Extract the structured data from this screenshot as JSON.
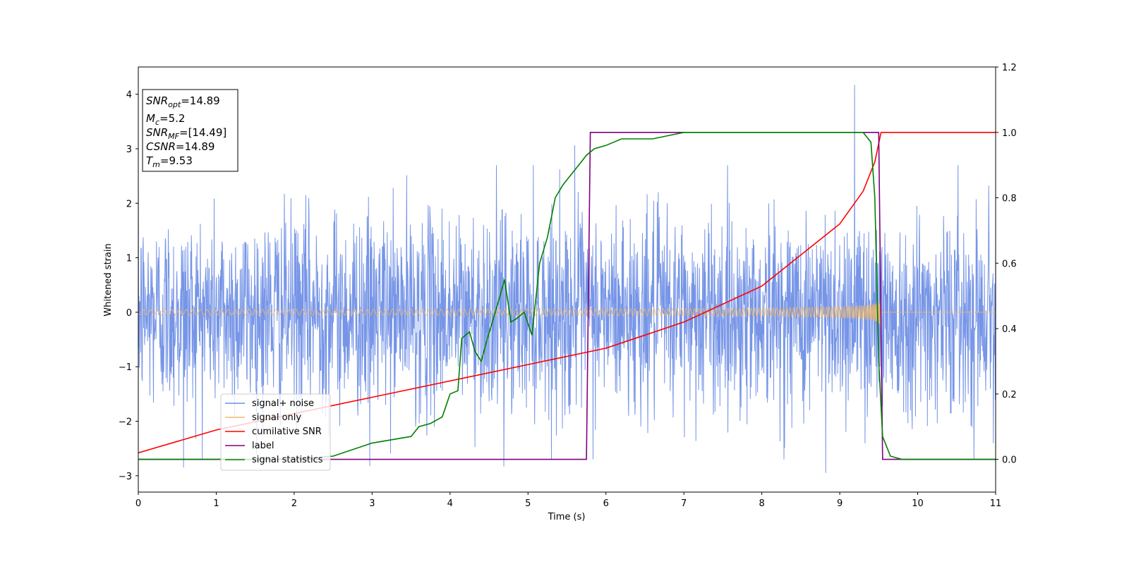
{
  "chart_data": {
    "type": "line",
    "xlabel": "Time (s)",
    "ylabel": "Whitened strain",
    "xlim": [
      0,
      11
    ],
    "ylim": [
      -3.3,
      4.5
    ],
    "y2lim": [
      -0.1,
      1.2
    ],
    "x_ticks": [
      "0",
      "1",
      "2",
      "3",
      "4",
      "5",
      "6",
      "7",
      "8",
      "9",
      "10",
      "11"
    ],
    "y_ticks": [
      "−3",
      "−2",
      "−1",
      "0",
      "1",
      "2",
      "3",
      "4"
    ],
    "y2_ticks": [
      "0.0",
      "0.2",
      "0.4",
      "0.6",
      "0.8",
      "1.0",
      "1.2"
    ],
    "grid": false,
    "legend_position": "lower-left",
    "info_box": {
      "snr_opt_sym": "SNR",
      "snr_opt_sub": "opt",
      "snr_opt_val": "=14.89",
      "mc_sym": "M",
      "mc_sub": "c",
      "mc_val": "=5.2",
      "snr_mf_sym": "SNR",
      "snr_mf_sub": "MF",
      "snr_mf_val": "=[14.49]",
      "csnr_sym": "CSNR",
      "csnr_val": "=14.89",
      "tm_sym": "T",
      "tm_sub": "m",
      "tm_val": "=9.53"
    },
    "series": [
      {
        "name": "signal+ noise",
        "color": "#6f8fe6",
        "axis": "left",
        "noise_std": 0.9,
        "peaks": [
          [
            9.19,
            4.17
          ],
          [
            8.82,
            -2.95
          ],
          [
            0.58,
            -2.85
          ],
          [
            4.69,
            -2.83
          ],
          [
            2.97,
            -2.82
          ],
          [
            5.6,
            3.06
          ]
        ]
      },
      {
        "name": "signal only",
        "color": "#f0b96a",
        "axis": "left",
        "merger_time": 9.53,
        "start_amplitude": 0.05,
        "peak_amplitude": 0.72
      },
      {
        "name": "cumilative SNR",
        "color": "#ff0000",
        "axis": "right",
        "x": [
          0,
          1,
          2,
          3,
          4,
          5,
          6,
          7,
          8,
          9,
          9.3,
          9.45,
          9.53,
          11
        ],
        "values": [
          0.02,
          0.09,
          0.14,
          0.19,
          0.24,
          0.29,
          0.34,
          0.42,
          0.53,
          0.72,
          0.82,
          0.91,
          1.0,
          1.0
        ]
      },
      {
        "name": "label",
        "color": "#800080",
        "axis": "right",
        "x": [
          0,
          5.75,
          5.8,
          9.5,
          9.55,
          11
        ],
        "values": [
          0,
          0,
          1,
          1,
          0,
          0
        ]
      },
      {
        "name": "signal statistics",
        "color": "#008000",
        "axis": "right",
        "x": [
          0,
          1,
          2,
          2.5,
          3,
          3.5,
          3.6,
          3.75,
          3.9,
          4.0,
          4.1,
          4.15,
          4.25,
          4.32,
          4.4,
          4.48,
          4.58,
          4.7,
          4.78,
          4.85,
          4.95,
          5.05,
          5.15,
          5.25,
          5.35,
          5.45,
          5.55,
          5.65,
          5.75,
          5.85,
          6.0,
          6.2,
          6.4,
          6.6,
          6.8,
          7.0,
          7.5,
          8.0,
          8.5,
          9.0,
          9.3,
          9.4,
          9.45,
          9.5,
          9.55,
          9.65,
          9.8,
          11
        ],
        "values": [
          0.0,
          0.0,
          0.0,
          0.01,
          0.05,
          0.07,
          0.1,
          0.11,
          0.13,
          0.2,
          0.21,
          0.37,
          0.39,
          0.33,
          0.3,
          0.37,
          0.45,
          0.55,
          0.42,
          0.43,
          0.45,
          0.38,
          0.6,
          0.68,
          0.8,
          0.84,
          0.87,
          0.9,
          0.93,
          0.95,
          0.96,
          0.98,
          0.98,
          0.98,
          0.99,
          1.0,
          1.0,
          1.0,
          1.0,
          1.0,
          1.0,
          0.97,
          0.8,
          0.3,
          0.07,
          0.01,
          0.0,
          0.0
        ]
      }
    ]
  }
}
